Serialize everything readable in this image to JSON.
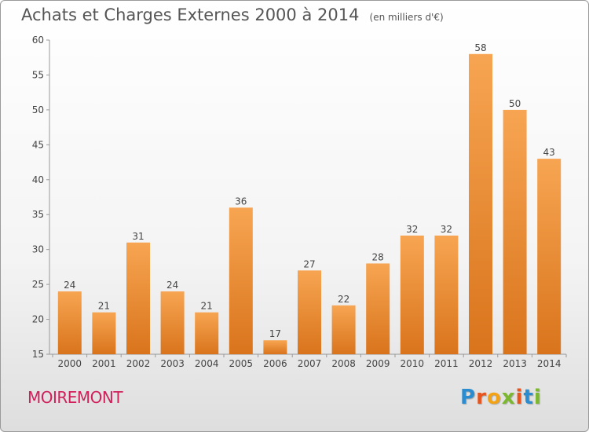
{
  "header": {
    "title": "Achats et Charges Externes 2000 à 2014",
    "unit": "(en milliers d'€)"
  },
  "footer": {
    "commune": "MOIREMONT",
    "logo_letters": [
      {
        "char": "P",
        "color": "#2b8ccf"
      },
      {
        "char": "r",
        "color": "#e8541e"
      },
      {
        "char": "o",
        "color": "#f3a215"
      },
      {
        "char": "x",
        "color": "#7cb82f"
      },
      {
        "char": "i",
        "color": "#e8541e"
      },
      {
        "char": "t",
        "color": "#2b8ccf"
      },
      {
        "char": "i",
        "color": "#7cb82f"
      }
    ]
  },
  "chart_data": {
    "type": "bar",
    "title": "Achats et Charges Externes 2000 à 2014",
    "subtitle": "(en milliers d'€)",
    "categories": [
      "2000",
      "2001",
      "2002",
      "2003",
      "2004",
      "2005",
      "2006",
      "2007",
      "2008",
      "2009",
      "2010",
      "2011",
      "2012",
      "2013",
      "2014"
    ],
    "values": [
      24,
      21,
      31,
      24,
      21,
      36,
      17,
      27,
      22,
      28,
      32,
      32,
      58,
      50,
      43
    ],
    "ylim": [
      15,
      60
    ],
    "yticks": [
      15,
      20,
      25,
      30,
      35,
      40,
      45,
      50,
      55,
      60
    ],
    "grid": false,
    "colors": {
      "bar_top": "#f7a552",
      "bar_bottom": "#d9741c",
      "axis": "#999999",
      "text": "#444444"
    }
  }
}
